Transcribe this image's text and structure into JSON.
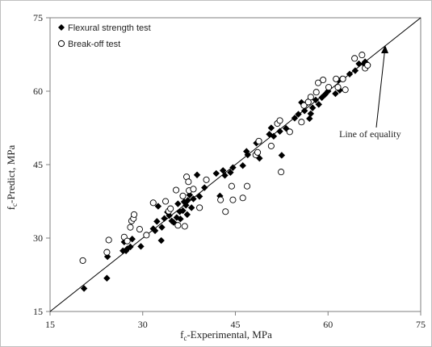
{
  "chart_data": {
    "type": "scatter",
    "title": "",
    "xlabel": "f c-Experimental, MPa",
    "ylabel": "f c-Predict, MPa",
    "xlabel_main": "f",
    "xlabel_sub": "c",
    "xlabel_rest": "-Experimental, MPa",
    "ylabel_main": "f",
    "ylabel_sub": "c",
    "ylabel_rest": "-Predict, MPa",
    "xlim": [
      15,
      75
    ],
    "ylim": [
      15,
      75
    ],
    "xticks": [
      15,
      30,
      45,
      60,
      75
    ],
    "yticks": [
      15,
      30,
      45,
      60,
      75
    ],
    "grid": false,
    "legend_position": "top-left",
    "annotation": "Line  of equality",
    "equality_line": [
      [
        15,
        15
      ],
      [
        75,
        75
      ]
    ],
    "series": [
      {
        "name": "Flexural strength test",
        "marker": "filled-diamond",
        "color": "#000000",
        "points": [
          [
            20.5,
            19.7
          ],
          [
            24.2,
            21.8
          ],
          [
            24.3,
            26.2
          ],
          [
            26.8,
            27.4
          ],
          [
            27.3,
            27.4
          ],
          [
            27.0,
            29.2
          ],
          [
            27.5,
            27.8
          ],
          [
            28.0,
            28.2
          ],
          [
            28.3,
            29.8
          ],
          [
            29.7,
            28.3
          ],
          [
            31.7,
            31.9
          ],
          [
            32.0,
            31.5
          ],
          [
            32.3,
            33.4
          ],
          [
            32.5,
            36.5
          ],
          [
            33.0,
            29.5
          ],
          [
            33.1,
            32.2
          ],
          [
            33.5,
            34.0
          ],
          [
            34.0,
            35.3
          ],
          [
            34.3,
            34.6
          ],
          [
            34.7,
            33.5
          ],
          [
            35.0,
            33.2
          ],
          [
            35.5,
            34.2
          ],
          [
            35.7,
            37.0
          ],
          [
            36.0,
            35.4
          ],
          [
            36.1,
            33.9
          ],
          [
            36.5,
            35.6
          ],
          [
            36.7,
            37.4
          ],
          [
            37.0,
            36.7
          ],
          [
            37.2,
            34.8
          ],
          [
            37.3,
            37.7
          ],
          [
            37.6,
            38.8
          ],
          [
            37.9,
            36.2
          ],
          [
            38.2,
            38.0
          ],
          [
            38.8,
            42.9
          ],
          [
            39.2,
            38.5
          ],
          [
            40.0,
            40.3
          ],
          [
            41.9,
            43.2
          ],
          [
            42.5,
            38.6
          ],
          [
            43.0,
            43.8
          ],
          [
            43.3,
            42.8
          ],
          [
            44.2,
            43.4
          ],
          [
            44.6,
            44.4
          ],
          [
            46.2,
            44.8
          ],
          [
            46.8,
            47.7
          ],
          [
            47.0,
            47.0
          ],
          [
            48.4,
            49.4
          ],
          [
            48.9,
            46.3
          ],
          [
            50.5,
            51.2
          ],
          [
            50.8,
            52.5
          ],
          [
            51.2,
            50.8
          ],
          [
            52.2,
            51.8
          ],
          [
            52.5,
            46.9
          ],
          [
            53.2,
            52.4
          ],
          [
            54.6,
            54.5
          ],
          [
            55.2,
            55.3
          ],
          [
            55.7,
            57.7
          ],
          [
            56.2,
            56.0
          ],
          [
            56.5,
            57.5
          ],
          [
            57.0,
            54.4
          ],
          [
            57.2,
            55.4
          ],
          [
            57.5,
            56.6
          ],
          [
            58.0,
            58.2
          ],
          [
            58.5,
            57.3
          ],
          [
            59.0,
            58.7
          ],
          [
            59.5,
            59.3
          ],
          [
            60.0,
            60.0
          ],
          [
            61.2,
            59.5
          ],
          [
            61.7,
            62.2
          ],
          [
            61.9,
            60.2
          ],
          [
            62.2,
            62.5
          ],
          [
            63.5,
            63.5
          ],
          [
            64.4,
            64.2
          ],
          [
            65.0,
            65.6
          ],
          [
            65.8,
            65.6
          ],
          [
            66.0,
            66.0
          ],
          [
            66.4,
            65.4
          ]
        ]
      },
      {
        "name": "Break-off test",
        "marker": "hollow-circle",
        "color": "#000000",
        "points": [
          [
            20.3,
            25.4
          ],
          [
            24.2,
            27.1
          ],
          [
            24.5,
            29.6
          ],
          [
            27.0,
            30.2
          ],
          [
            27.5,
            29.4
          ],
          [
            28.0,
            32.2
          ],
          [
            28.2,
            33.5
          ],
          [
            28.5,
            34.0
          ],
          [
            28.6,
            34.8
          ],
          [
            29.5,
            31.8
          ],
          [
            30.6,
            30.6
          ],
          [
            31.7,
            37.2
          ],
          [
            33.7,
            37.5
          ],
          [
            34.2,
            35.5
          ],
          [
            34.5,
            36.0
          ],
          [
            35.4,
            39.8
          ],
          [
            35.7,
            32.6
          ],
          [
            36.5,
            38.6
          ],
          [
            36.8,
            32.4
          ],
          [
            37.1,
            42.5
          ],
          [
            37.4,
            41.5
          ],
          [
            37.5,
            39.7
          ],
          [
            38.2,
            40.0
          ],
          [
            39.2,
            36.2
          ],
          [
            40.3,
            41.9
          ],
          [
            42.6,
            37.8
          ],
          [
            43.4,
            35.4
          ],
          [
            44.4,
            40.6
          ],
          [
            44.6,
            37.8
          ],
          [
            46.2,
            38.2
          ],
          [
            46.9,
            40.6
          ],
          [
            48.3,
            47.0
          ],
          [
            48.6,
            47.5
          ],
          [
            48.8,
            49.8
          ],
          [
            50.8,
            48.8
          ],
          [
            51.8,
            53.4
          ],
          [
            52.2,
            54.0
          ],
          [
            52.4,
            43.5
          ],
          [
            53.8,
            51.7
          ],
          [
            55.7,
            53.7
          ],
          [
            56.1,
            57.1
          ],
          [
            56.8,
            57.8
          ],
          [
            57.2,
            58.8
          ],
          [
            58.1,
            59.8
          ],
          [
            58.4,
            61.7
          ],
          [
            59.2,
            62.3
          ],
          [
            60.1,
            60.8
          ],
          [
            61.3,
            62.5
          ],
          [
            61.6,
            60.8
          ],
          [
            62.4,
            62.5
          ],
          [
            62.8,
            60.3
          ],
          [
            64.3,
            66.7
          ],
          [
            65.5,
            67.4
          ],
          [
            66.0,
            64.7
          ],
          [
            66.4,
            65.3
          ]
        ]
      }
    ]
  }
}
